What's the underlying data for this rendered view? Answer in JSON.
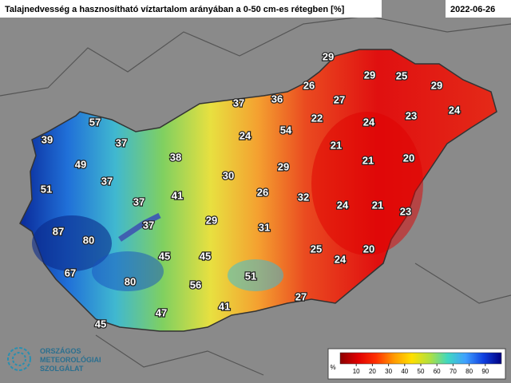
{
  "header": {
    "title": "Talajnedvesség a hasznosítható víztartalom arányában a 0-50 cm-es rétegben [%]",
    "date": "2022-06-26"
  },
  "stations": [
    29,
    29,
    25,
    29,
    26,
    37,
    36,
    27,
    22,
    24,
    23,
    24,
    57,
    54,
    24,
    39,
    37,
    21,
    38,
    29,
    21,
    20,
    49,
    30,
    37,
    51,
    26,
    32,
    37,
    41,
    24,
    21,
    23,
    29,
    31,
    37,
    87,
    80,
    25,
    20,
    24,
    45,
    45,
    51,
    67,
    80,
    56,
    27,
    41,
    47,
    45
  ],
  "legend": {
    "unit": "%",
    "ticks": [
      10,
      20,
      30,
      40,
      50,
      60,
      70,
      80,
      90
    ],
    "colors": [
      "#8b0000",
      "#e00000",
      "#ff3000",
      "#ff9a00",
      "#ffe000",
      "#b0e040",
      "#40d8c0",
      "#40a0ff",
      "#1040e0",
      "#000080"
    ]
  },
  "logo": {
    "lines": [
      "ORSZÁGOS",
      "METEOROLÓGIAI",
      "SZOLGÁLAT"
    ]
  }
}
